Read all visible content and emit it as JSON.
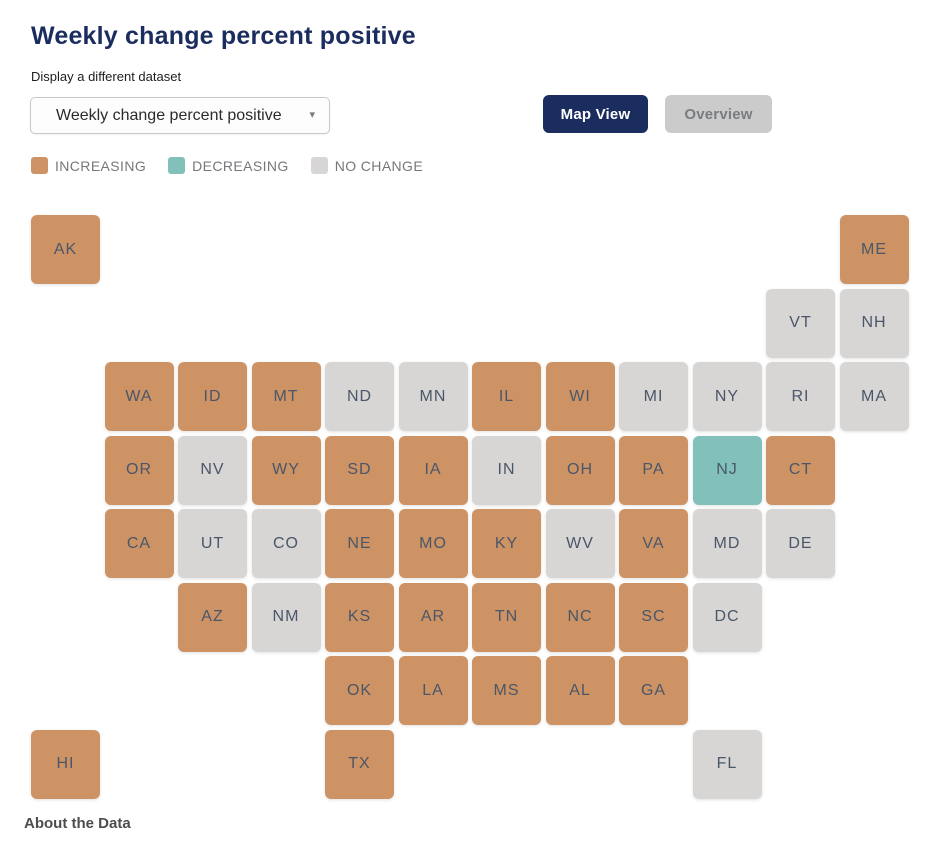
{
  "page": {
    "title": "Weekly change percent positive",
    "dataset_label": "Display a different dataset",
    "footer_link": "About the Data"
  },
  "dataset_dropdown": {
    "selected": "Weekly change percent positive",
    "caret_glyph": "▾"
  },
  "view_toggle": {
    "map_view_label": "Map View",
    "overview_label": "Overview",
    "active": "Map View"
  },
  "legend": {
    "items": [
      {
        "label": "INCREASING",
        "status": "increasing",
        "color": "#CE9364"
      },
      {
        "label": "DECREASING",
        "status": "decreasing",
        "color": "#82C1B9"
      },
      {
        "label": "NO CHANGE",
        "status": "no-change",
        "color": "#D8D6D4"
      }
    ]
  },
  "colors": {
    "increasing": "#CE9364",
    "decreasing": "#82C1B9",
    "no-change": "#D8D6D4",
    "title": "#1B2C5F",
    "active_button_bg": "#1B2C5F",
    "inactive_button_bg": "#CBCBCB",
    "tile_label": "#4A5669",
    "legend_text": "#75787B"
  },
  "chart_data": {
    "type": "heatmap",
    "title": "Weekly change percent positive",
    "legend_position": "top",
    "legend_entries": [
      "INCREASING",
      "DECREASING",
      "NO CHANGE"
    ],
    "layout": "us-state-tile-cartogram, 12 columns x 8 rows",
    "states": [
      {
        "abbr": "AK",
        "row": 1,
        "col": 1,
        "status": "increasing"
      },
      {
        "abbr": "ME",
        "row": 1,
        "col": 12,
        "status": "increasing"
      },
      {
        "abbr": "VT",
        "row": 2,
        "col": 11,
        "status": "no-change"
      },
      {
        "abbr": "NH",
        "row": 2,
        "col": 12,
        "status": "no-change"
      },
      {
        "abbr": "WA",
        "row": 3,
        "col": 2,
        "status": "increasing"
      },
      {
        "abbr": "ID",
        "row": 3,
        "col": 3,
        "status": "increasing"
      },
      {
        "abbr": "MT",
        "row": 3,
        "col": 4,
        "status": "increasing"
      },
      {
        "abbr": "ND",
        "row": 3,
        "col": 5,
        "status": "no-change"
      },
      {
        "abbr": "MN",
        "row": 3,
        "col": 6,
        "status": "no-change"
      },
      {
        "abbr": "IL",
        "row": 3,
        "col": 7,
        "status": "increasing"
      },
      {
        "abbr": "WI",
        "row": 3,
        "col": 8,
        "status": "increasing"
      },
      {
        "abbr": "MI",
        "row": 3,
        "col": 9,
        "status": "no-change"
      },
      {
        "abbr": "NY",
        "row": 3,
        "col": 10,
        "status": "no-change"
      },
      {
        "abbr": "RI",
        "row": 3,
        "col": 11,
        "status": "no-change"
      },
      {
        "abbr": "MA",
        "row": 3,
        "col": 12,
        "status": "no-change"
      },
      {
        "abbr": "OR",
        "row": 4,
        "col": 2,
        "status": "increasing"
      },
      {
        "abbr": "NV",
        "row": 4,
        "col": 3,
        "status": "no-change"
      },
      {
        "abbr": "WY",
        "row": 4,
        "col": 4,
        "status": "increasing"
      },
      {
        "abbr": "SD",
        "row": 4,
        "col": 5,
        "status": "increasing"
      },
      {
        "abbr": "IA",
        "row": 4,
        "col": 6,
        "status": "increasing"
      },
      {
        "abbr": "IN",
        "row": 4,
        "col": 7,
        "status": "no-change"
      },
      {
        "abbr": "OH",
        "row": 4,
        "col": 8,
        "status": "increasing"
      },
      {
        "abbr": "PA",
        "row": 4,
        "col": 9,
        "status": "increasing"
      },
      {
        "abbr": "NJ",
        "row": 4,
        "col": 10,
        "status": "decreasing"
      },
      {
        "abbr": "CT",
        "row": 4,
        "col": 11,
        "status": "increasing"
      },
      {
        "abbr": "CA",
        "row": 5,
        "col": 2,
        "status": "increasing"
      },
      {
        "abbr": "UT",
        "row": 5,
        "col": 3,
        "status": "no-change"
      },
      {
        "abbr": "CO",
        "row": 5,
        "col": 4,
        "status": "no-change"
      },
      {
        "abbr": "NE",
        "row": 5,
        "col": 5,
        "status": "increasing"
      },
      {
        "abbr": "MO",
        "row": 5,
        "col": 6,
        "status": "increasing"
      },
      {
        "abbr": "KY",
        "row": 5,
        "col": 7,
        "status": "increasing"
      },
      {
        "abbr": "WV",
        "row": 5,
        "col": 8,
        "status": "no-change"
      },
      {
        "abbr": "VA",
        "row": 5,
        "col": 9,
        "status": "increasing"
      },
      {
        "abbr": "MD",
        "row": 5,
        "col": 10,
        "status": "no-change"
      },
      {
        "abbr": "DE",
        "row": 5,
        "col": 11,
        "status": "no-change"
      },
      {
        "abbr": "AZ",
        "row": 6,
        "col": 3,
        "status": "increasing"
      },
      {
        "abbr": "NM",
        "row": 6,
        "col": 4,
        "status": "no-change"
      },
      {
        "abbr": "KS",
        "row": 6,
        "col": 5,
        "status": "increasing"
      },
      {
        "abbr": "AR",
        "row": 6,
        "col": 6,
        "status": "increasing"
      },
      {
        "abbr": "TN",
        "row": 6,
        "col": 7,
        "status": "increasing"
      },
      {
        "abbr": "NC",
        "row": 6,
        "col": 8,
        "status": "increasing"
      },
      {
        "abbr": "SC",
        "row": 6,
        "col": 9,
        "status": "increasing"
      },
      {
        "abbr": "DC",
        "row": 6,
        "col": 10,
        "status": "no-change"
      },
      {
        "abbr": "OK",
        "row": 7,
        "col": 5,
        "status": "increasing"
      },
      {
        "abbr": "LA",
        "row": 7,
        "col": 6,
        "status": "increasing"
      },
      {
        "abbr": "MS",
        "row": 7,
        "col": 7,
        "status": "increasing"
      },
      {
        "abbr": "AL",
        "row": 7,
        "col": 8,
        "status": "increasing"
      },
      {
        "abbr": "GA",
        "row": 7,
        "col": 9,
        "status": "increasing"
      },
      {
        "abbr": "HI",
        "row": 8,
        "col": 1,
        "status": "increasing"
      },
      {
        "abbr": "TX",
        "row": 8,
        "col": 5,
        "status": "increasing"
      },
      {
        "abbr": "FL",
        "row": 8,
        "col": 10,
        "status": "no-change"
      }
    ]
  }
}
